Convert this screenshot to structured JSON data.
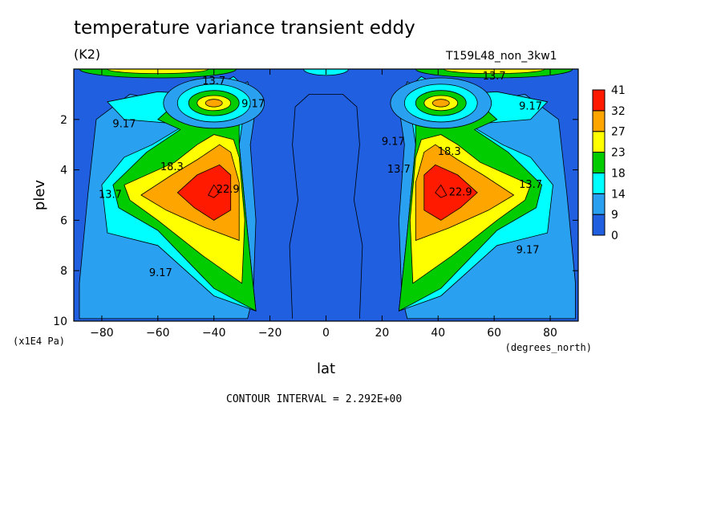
{
  "header": {
    "title": "temperature variance transient eddy",
    "units": "(K2)",
    "run_label": "T159L48_non_3kw1"
  },
  "footer": {
    "contour_interval": "CONTOUR INTERVAL = 2.292E+00"
  },
  "chart_data": {
    "type": "heatmap",
    "title": "temperature variance transient eddy",
    "xlabel": "lat",
    "xunits": "(degrees_north)",
    "ylabel": "plev",
    "yunits": "(x1E4 Pa)",
    "xlim": [
      -90,
      90
    ],
    "ylim": [
      10,
      0
    ],
    "x_ticks": [
      -80,
      -60,
      -40,
      -20,
      0,
      20,
      40,
      60,
      80
    ],
    "y_ticks": [
      2,
      4,
      6,
      8,
      10
    ],
    "colorbar": {
      "levels": [
        0,
        9,
        14,
        18,
        23,
        27,
        32,
        41
      ],
      "colors": [
        "#1f5fe0",
        "#2aa0f0",
        "#00ffff",
        "#00cc00",
        "#ffff00",
        "#ffa500",
        "#ff1a00"
      ]
    },
    "contour_interval": 2.292,
    "contour_labels": [
      {
        "text": "13.7",
        "lat": -40,
        "plev": 0.5
      },
      {
        "text": "9.17",
        "lat": -26,
        "plev": 1.4
      },
      {
        "text": "9.17",
        "lat": -72,
        "plev": 2.2
      },
      {
        "text": "18.3",
        "lat": -55,
        "plev": 3.9
      },
      {
        "text": "13.7",
        "lat": -77,
        "plev": 5.0
      },
      {
        "text": "22.9",
        "lat": -35,
        "plev": 4.8
      },
      {
        "text": "9.17",
        "lat": -59,
        "plev": 8.1
      },
      {
        "text": "13.7",
        "lat": 60,
        "plev": 0.3
      },
      {
        "text": "9.17",
        "lat": 73,
        "plev": 1.5
      },
      {
        "text": "9.17",
        "lat": 24,
        "plev": 2.9
      },
      {
        "text": "13.7",
        "lat": 26,
        "plev": 4.0
      },
      {
        "text": "18.3",
        "lat": 44,
        "plev": 3.3
      },
      {
        "text": "22.9",
        "lat": 48,
        "plev": 4.9
      },
      {
        "text": "13.7",
        "lat": 73,
        "plev": 4.6
      },
      {
        "text": "9.17",
        "lat": 72,
        "plev": 7.2
      }
    ]
  }
}
